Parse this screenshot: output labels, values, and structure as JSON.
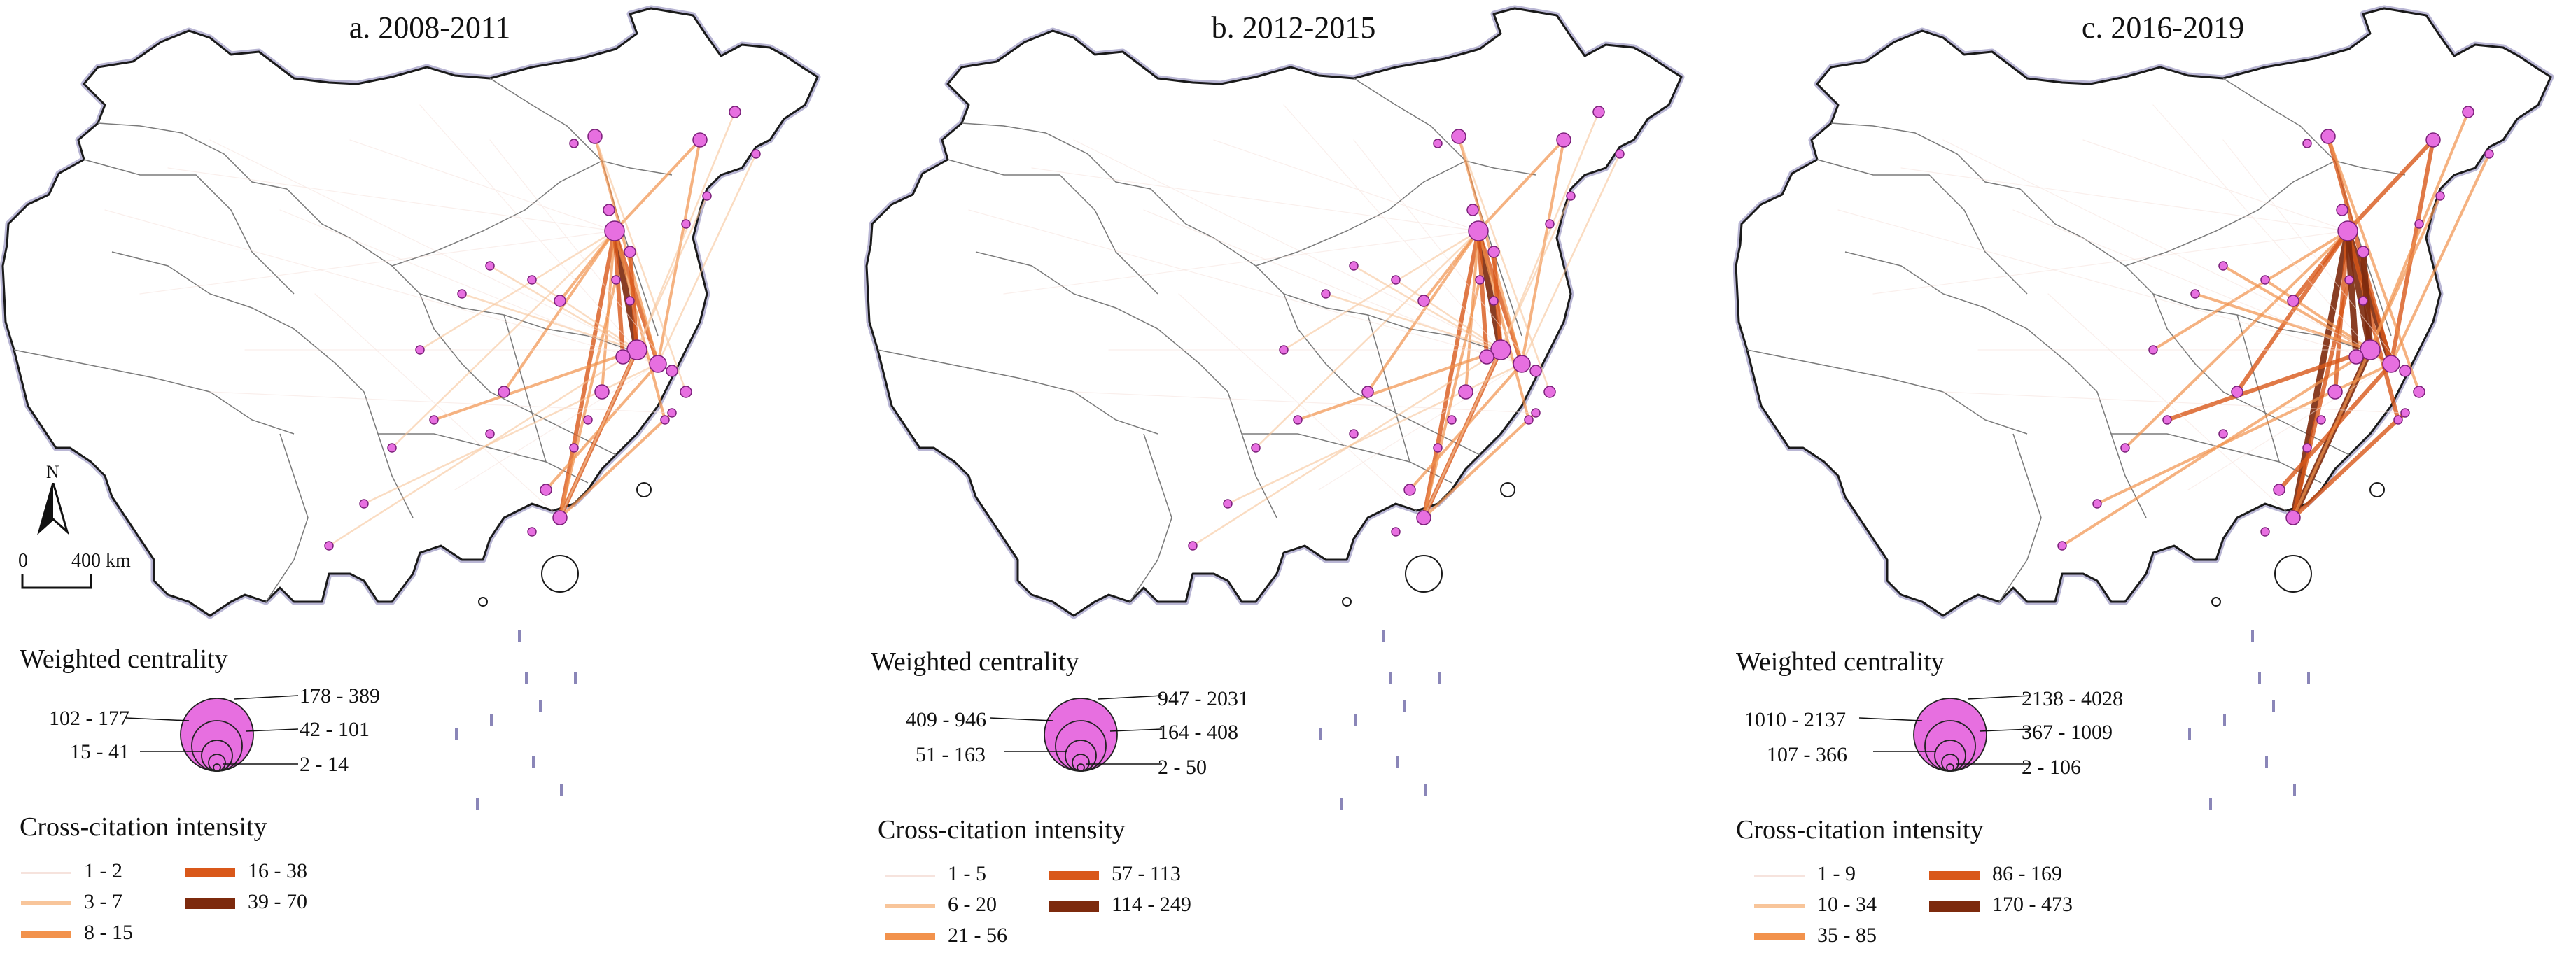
{
  "scale_bar": {
    "zero": "0",
    "distance": "400 km",
    "north": "N"
  },
  "colors": {
    "land_fill": "#ffffff",
    "border": "#1a1a1a",
    "border_halo": "#8a86b8",
    "province_line": "#7a7a7a",
    "node_fill": "#e76fe0",
    "node_stroke": "#7a1f79",
    "line_classes": [
      "#f6e3dd",
      "#f8c59a",
      "#f2924c",
      "#d9581a",
      "#7d2a0d"
    ]
  },
  "panels": [
    {
      "title": "a. 2008-2011",
      "centrality_title": "Weighted centrality",
      "centrality_classes": [
        "178 - 389",
        "102 - 177",
        "42 - 101",
        "15 - 41",
        "2 - 14"
      ],
      "intensity_title": "Cross-citation intensity",
      "intensity_classes": [
        "1 - 2",
        "3 - 7",
        "8 - 15",
        "16 - 38",
        "39 - 70"
      ]
    },
    {
      "title": "b. 2012-2015",
      "centrality_title": "Weighted centrality",
      "centrality_classes": [
        "947 - 2031",
        "409 - 946",
        "164 - 408",
        "51 - 163",
        "2 - 50"
      ],
      "intensity_title": "Cross-citation intensity",
      "intensity_classes": [
        "1 - 5",
        "6 - 20",
        "21 - 56",
        "57 - 113",
        "114 - 249"
      ]
    },
    {
      "title": "c. 2016-2019",
      "centrality_title": "Weighted centrality",
      "centrality_classes": [
        "2138 - 4028",
        "1010 - 2137",
        "367 - 1009",
        "107 - 366",
        "2 - 106"
      ],
      "intensity_title": "Cross-citation intensity",
      "intensity_classes": [
        "1 - 9",
        "10 - 34",
        "35 - 85",
        "86 - 169",
        "170 - 473"
      ]
    }
  ]
}
